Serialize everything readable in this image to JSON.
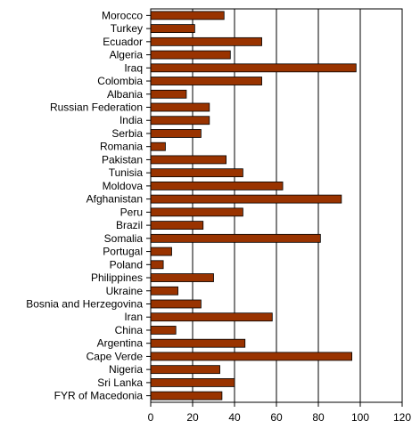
{
  "chart_data": {
    "type": "bar",
    "orientation": "horizontal",
    "title": "",
    "xlabel": "",
    "ylabel": "",
    "categories": [
      "Morocco",
      "Turkey",
      "Ecuador",
      "Algeria",
      "Iraq",
      "Colombia",
      "Albania",
      "Russian Federation",
      "India",
      "Serbia",
      "Romania",
      "Pakistan",
      "Tunisia",
      "Moldova",
      "Afghanistan",
      "Peru",
      "Brazil",
      "Somalia",
      "Portugal",
      "Poland",
      "Philippines",
      "Ukraine",
      "Bosnia and Herzegovina",
      "Iran",
      "China",
      "Argentina",
      "Cape Verde",
      "Nigeria",
      "Sri Lanka",
      "FYR of Macedonia"
    ],
    "values": [
      35,
      21,
      53,
      38,
      98,
      53,
      17,
      28,
      28,
      24,
      7,
      36,
      44,
      63,
      91,
      44,
      25,
      81,
      10,
      6,
      30,
      13,
      24,
      58,
      12,
      45,
      96,
      33,
      40,
      34
    ],
    "xlim": [
      0,
      120
    ],
    "xticks": [
      0,
      20,
      40,
      60,
      80,
      100,
      120
    ],
    "grid": "vertical",
    "legend": "none",
    "colors": {
      "bar_fill": "#993300",
      "bar_stroke": "#000000",
      "axis": "#000000",
      "gridline": "#000000"
    }
  }
}
